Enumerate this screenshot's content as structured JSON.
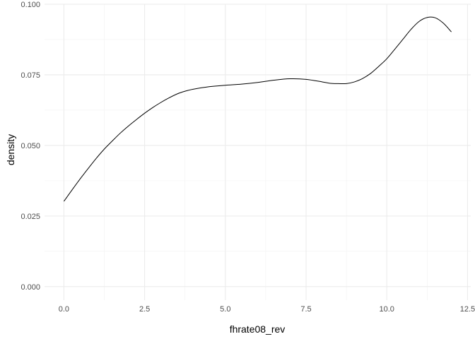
{
  "chart_data": {
    "type": "line",
    "title": "",
    "xlabel": "fhrate08_rev",
    "ylabel": "density",
    "xlim": [
      -0.6,
      12.6
    ],
    "ylim": [
      -0.0048,
      0.1
    ],
    "x_ticks": [
      0.0,
      2.5,
      5.0,
      7.5,
      10.0,
      12.5
    ],
    "x_tick_labels": [
      "0.0",
      "2.5",
      "5.0",
      "7.5",
      "10.0",
      "12.5"
    ],
    "y_ticks": [
      0.0,
      0.025,
      0.05,
      0.075,
      0.1
    ],
    "y_tick_labels": [
      "0.000",
      "0.025",
      "0.050",
      "0.075",
      "0.100"
    ],
    "grid": true,
    "legend": "none",
    "colors": {
      "line": "#000000",
      "grid_major": "#ebebeb",
      "grid_minor": "#f2f2f2",
      "tick_text": "#4d4d4d",
      "background": "#ffffff"
    },
    "series": [
      {
        "x": [
          0.0,
          0.25,
          0.5,
          0.75,
          1.0,
          1.25,
          1.5,
          1.75,
          2.0,
          2.25,
          2.5,
          2.75,
          3.0,
          3.25,
          3.5,
          3.75,
          4.0,
          4.5,
          5.0,
          5.5,
          6.0,
          6.5,
          7.0,
          7.5,
          8.0,
          8.25,
          8.5,
          8.75,
          9.0,
          9.25,
          9.5,
          9.75,
          10.0,
          10.25,
          10.5,
          10.75,
          11.0,
          11.25,
          11.5,
          11.75,
          12.0
        ],
        "y": [
          0.0302,
          0.0342,
          0.0381,
          0.0418,
          0.0454,
          0.0487,
          0.0516,
          0.0544,
          0.0569,
          0.0592,
          0.0614,
          0.0634,
          0.0652,
          0.0668,
          0.0682,
          0.0692,
          0.0699,
          0.0708,
          0.0713,
          0.0717,
          0.0723,
          0.0731,
          0.0736,
          0.0734,
          0.0725,
          0.072,
          0.0719,
          0.0719,
          0.0725,
          0.0737,
          0.0755,
          0.078,
          0.0807,
          0.0841,
          0.0876,
          0.0911,
          0.0939,
          0.0953,
          0.0952,
          0.0933,
          0.0902
        ]
      }
    ]
  }
}
